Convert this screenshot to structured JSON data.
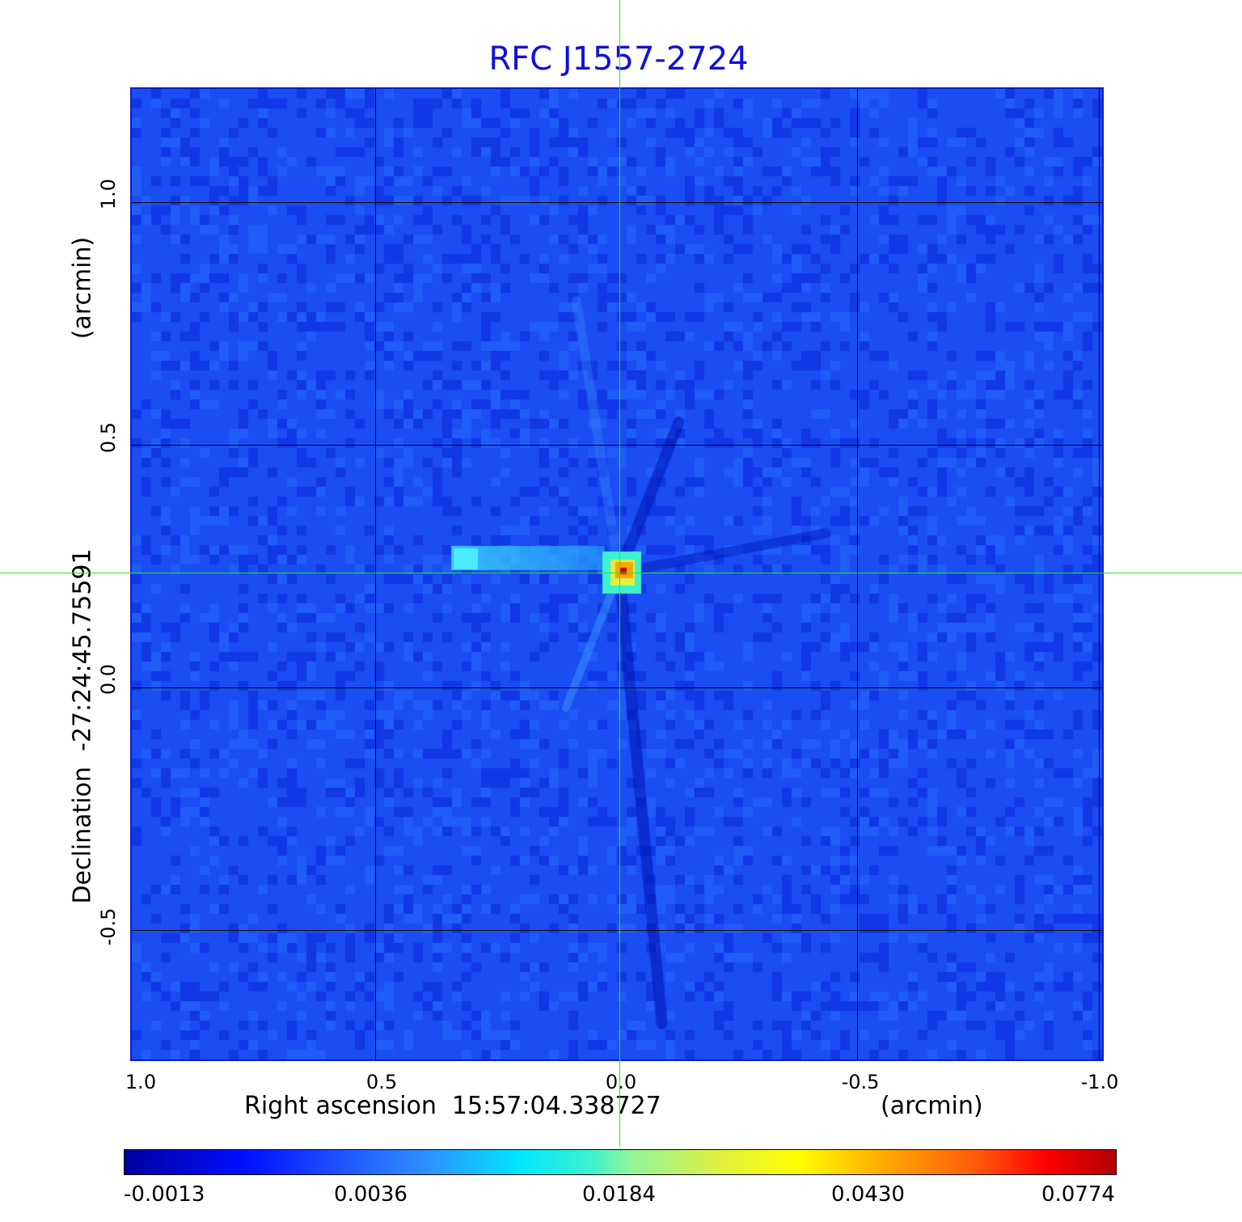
{
  "title": "RFC J1557-2724",
  "x_axis": {
    "label": "Right ascension  15:57:04.338727",
    "unit": "(arcmin)",
    "ticks": [
      "1.0",
      "0.5",
      "0.0",
      "-0.5",
      "-1.0"
    ]
  },
  "y_axis": {
    "label": "Declination  -27:24:45.75591",
    "unit": "(arcmin)",
    "ticks": [
      "1.0",
      "0.5",
      "0.0",
      "-0.5"
    ]
  },
  "colorbar": {
    "ticks": [
      "-0.0013",
      "0.0036",
      "0.0184",
      "0.0430",
      "0.0774"
    ]
  },
  "colors": {
    "title": "#1010d8",
    "crosshair": "#30e030",
    "background_map": "#1a4df2"
  }
}
